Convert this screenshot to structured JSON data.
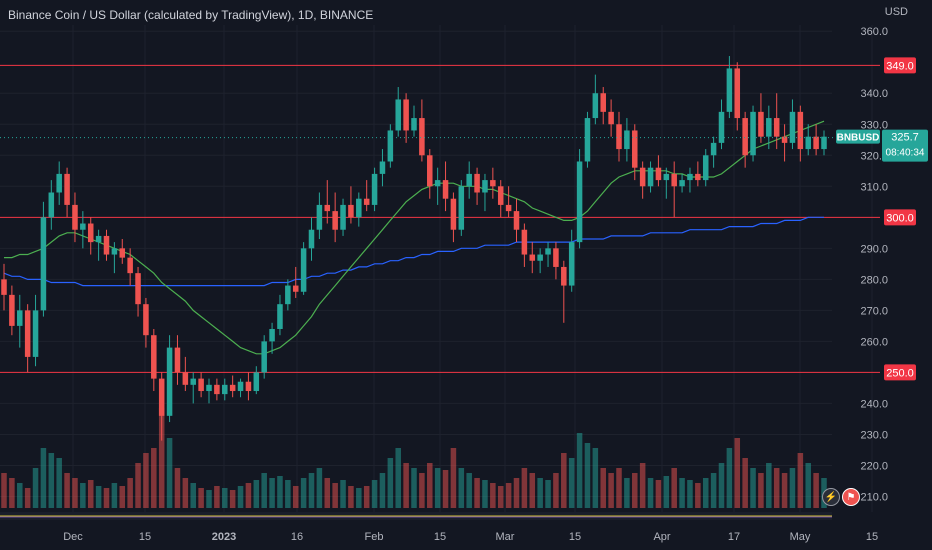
{
  "chart_title": "Binance Coin / US Dollar (calculated by TradingView), 1D, BINANCE",
  "currency_label": "USD",
  "icons": {
    "bolt": "lightning-icon",
    "flag": "us-flag-icon"
  },
  "colors": {
    "background": "#131722",
    "up": "#26a69a",
    "down": "#ef5350",
    "ma_short": "#4caf50",
    "ma_long": "#2962ff",
    "level_line": "#f23645"
  },
  "chart_data": {
    "type": "candlestick",
    "symbol": "BNBUSD",
    "current_price": "325.7",
    "countdown": "08:40:34",
    "ylim": [
      205,
      362
    ],
    "y_ticks": [
      "360.0",
      "340.0",
      "330.0",
      "320.0",
      "310.0",
      "290.0",
      "280.0",
      "270.0",
      "260.0",
      "240.0",
      "230.0",
      "220.0",
      "210.0"
    ],
    "x_ticks": [
      "Dec",
      "15",
      "2023",
      "16",
      "Feb",
      "15",
      "Mar",
      "15",
      "Apr",
      "17",
      "May",
      "15"
    ],
    "horizontal_levels": [
      "349.0",
      "300.0",
      "250.0"
    ],
    "candles_ohlc": [
      [
        280,
        285,
        270,
        275
      ],
      [
        275,
        278,
        262,
        265
      ],
      [
        265,
        275,
        258,
        270
      ],
      [
        270,
        272,
        250,
        255
      ],
      [
        255,
        275,
        252,
        270
      ],
      [
        270,
        305,
        268,
        300
      ],
      [
        300,
        312,
        296,
        308
      ],
      [
        308,
        318,
        304,
        314
      ],
      [
        314,
        316,
        300,
        304
      ],
      [
        304,
        308,
        292,
        296
      ],
      [
        296,
        302,
        290,
        298
      ],
      [
        298,
        300,
        288,
        292
      ],
      [
        292,
        296,
        286,
        294
      ],
      [
        294,
        296,
        286,
        288
      ],
      [
        288,
        292,
        282,
        290
      ],
      [
        290,
        293,
        285,
        287
      ],
      [
        287,
        290,
        278,
        282
      ],
      [
        282,
        284,
        268,
        272
      ],
      [
        272,
        274,
        258,
        262
      ],
      [
        262,
        264,
        244,
        248
      ],
      [
        248,
        250,
        228,
        236
      ],
      [
        236,
        262,
        234,
        258
      ],
      [
        258,
        262,
        246,
        250
      ],
      [
        250,
        255,
        244,
        246
      ],
      [
        246,
        250,
        240,
        248
      ],
      [
        248,
        250,
        242,
        244
      ],
      [
        244,
        248,
        240,
        246
      ],
      [
        246,
        248,
        241,
        243
      ],
      [
        243,
        248,
        241,
        246
      ],
      [
        246,
        249,
        242,
        244
      ],
      [
        244,
        248,
        242,
        247
      ],
      [
        247,
        250,
        241,
        244
      ],
      [
        244,
        252,
        243,
        250
      ],
      [
        250,
        262,
        248,
        260
      ],
      [
        260,
        266,
        256,
        264
      ],
      [
        264,
        275,
        262,
        272
      ],
      [
        272,
        280,
        270,
        278
      ],
      [
        278,
        284,
        274,
        276
      ],
      [
        276,
        292,
        275,
        290
      ],
      [
        290,
        300,
        286,
        296
      ],
      [
        296,
        308,
        293,
        304
      ],
      [
        304,
        312,
        298,
        302
      ],
      [
        302,
        308,
        292,
        296
      ],
      [
        296,
        306,
        294,
        304
      ],
      [
        304,
        310,
        298,
        300
      ],
      [
        300,
        308,
        297,
        306
      ],
      [
        306,
        312,
        302,
        304
      ],
      [
        304,
        316,
        302,
        314
      ],
      [
        314,
        322,
        310,
        318
      ],
      [
        318,
        330,
        316,
        328
      ],
      [
        328,
        342,
        326,
        338
      ],
      [
        338,
        340,
        324,
        328
      ],
      [
        328,
        336,
        326,
        332
      ],
      [
        332,
        338,
        318,
        320
      ],
      [
        320,
        322,
        306,
        310
      ],
      [
        310,
        316,
        304,
        312
      ],
      [
        312,
        318,
        302,
        306
      ],
      [
        306,
        308,
        292,
        296
      ],
      [
        296,
        312,
        294,
        310
      ],
      [
        310,
        318,
        306,
        314
      ],
      [
        314,
        316,
        304,
        308
      ],
      [
        308,
        314,
        302,
        312
      ],
      [
        312,
        316,
        306,
        310
      ],
      [
        310,
        312,
        300,
        304
      ],
      [
        304,
        310,
        300,
        302
      ],
      [
        302,
        306,
        292,
        296
      ],
      [
        296,
        298,
        284,
        288
      ],
      [
        288,
        292,
        282,
        286
      ],
      [
        286,
        290,
        282,
        288
      ],
      [
        288,
        292,
        284,
        290
      ],
      [
        290,
        292,
        280,
        284
      ],
      [
        284,
        286,
        266,
        278
      ],
      [
        278,
        296,
        276,
        292
      ],
      [
        292,
        322,
        290,
        318
      ],
      [
        318,
        334,
        316,
        332
      ],
      [
        332,
        346,
        330,
        340
      ],
      [
        340,
        342,
        330,
        334
      ],
      [
        334,
        338,
        326,
        330
      ],
      [
        330,
        334,
        318,
        322
      ],
      [
        322,
        332,
        318,
        328
      ],
      [
        328,
        330,
        312,
        316
      ],
      [
        316,
        318,
        306,
        310
      ],
      [
        310,
        318,
        308,
        316
      ],
      [
        316,
        320,
        310,
        312
      ],
      [
        312,
        316,
        306,
        314
      ],
      [
        314,
        318,
        300,
        310
      ],
      [
        310,
        314,
        308,
        312
      ],
      [
        312,
        316,
        308,
        314
      ],
      [
        314,
        318,
        310,
        312
      ],
      [
        312,
        322,
        310,
        320
      ],
      [
        320,
        326,
        316,
        324
      ],
      [
        324,
        338,
        322,
        334
      ],
      [
        334,
        352,
        332,
        348
      ],
      [
        348,
        350,
        328,
        332
      ],
      [
        332,
        334,
        316,
        320
      ],
      [
        320,
        336,
        318,
        334
      ],
      [
        334,
        340,
        324,
        326
      ],
      [
        326,
        336,
        322,
        332
      ],
      [
        332,
        340,
        322,
        326
      ],
      [
        326,
        330,
        318,
        324
      ],
      [
        324,
        338,
        322,
        334
      ],
      [
        334,
        336,
        318,
        322
      ],
      [
        322,
        330,
        320,
        326
      ],
      [
        326,
        330,
        320,
        322
      ],
      [
        322,
        328,
        320,
        326
      ]
    ],
    "ma_short_values": [
      287,
      287,
      288,
      288,
      289,
      290,
      292,
      294,
      295,
      295,
      294,
      293,
      292,
      291,
      290,
      289,
      288,
      286,
      284,
      282,
      279,
      277,
      275,
      273,
      270,
      268,
      266,
      264,
      262,
      260,
      258,
      257,
      256,
      256,
      257,
      258,
      260,
      262,
      265,
      268,
      272,
      275,
      278,
      281,
      284,
      287,
      290,
      293,
      296,
      299,
      302,
      305,
      307,
      309,
      310,
      311,
      311,
      311,
      310,
      310,
      310,
      309,
      309,
      308,
      307,
      306,
      305,
      303,
      302,
      301,
      300,
      299,
      299,
      300,
      302,
      305,
      308,
      311,
      313,
      314,
      315,
      315,
      315,
      315,
      315,
      314,
      314,
      313,
      313,
      313,
      313,
      314,
      316,
      318,
      320,
      322,
      323,
      324,
      325,
      326,
      327,
      328,
      329,
      330,
      331
    ],
    "ma_long_values": [
      282,
      281,
      281,
      280,
      280,
      280,
      279,
      279,
      279,
      279,
      278,
      278,
      278,
      278,
      278,
      278,
      278,
      278,
      278,
      278,
      278,
      278,
      278,
      278,
      278,
      278,
      278,
      278,
      278,
      278,
      278,
      278,
      278,
      278,
      279,
      279,
      279,
      280,
      280,
      281,
      281,
      282,
      282,
      283,
      283,
      284,
      284,
      285,
      285,
      286,
      286,
      287,
      287,
      288,
      288,
      289,
      289,
      289,
      290,
      290,
      290,
      291,
      291,
      291,
      291,
      292,
      292,
      292,
      292,
      292,
      292,
      292,
      292,
      293,
      293,
      293,
      293,
      294,
      294,
      294,
      294,
      294,
      295,
      295,
      295,
      295,
      295,
      296,
      296,
      296,
      296,
      296,
      297,
      297,
      297,
      297,
      298,
      298,
      298,
      299,
      299,
      299,
      300,
      300,
      300
    ],
    "volume_values": [
      35,
      30,
      25,
      20,
      40,
      60,
      55,
      50,
      35,
      30,
      25,
      28,
      22,
      20,
      25,
      22,
      30,
      45,
      55,
      60,
      100,
      70,
      40,
      30,
      25,
      20,
      18,
      22,
      20,
      18,
      22,
      25,
      28,
      35,
      30,
      32,
      28,
      22,
      30,
      35,
      40,
      30,
      25,
      28,
      22,
      20,
      22,
      28,
      35,
      50,
      60,
      45,
      40,
      35,
      45,
      40,
      38,
      60,
      40,
      35,
      30,
      28,
      25,
      22,
      25,
      30,
      40,
      35,
      30,
      28,
      35,
      55,
      50,
      75,
      65,
      60,
      40,
      35,
      40,
      30,
      35,
      45,
      30,
      28,
      32,
      40,
      30,
      28,
      25,
      30,
      35,
      45,
      60,
      70,
      50,
      40,
      35,
      45,
      40,
      35,
      40,
      55,
      45,
      35,
      30
    ]
  }
}
